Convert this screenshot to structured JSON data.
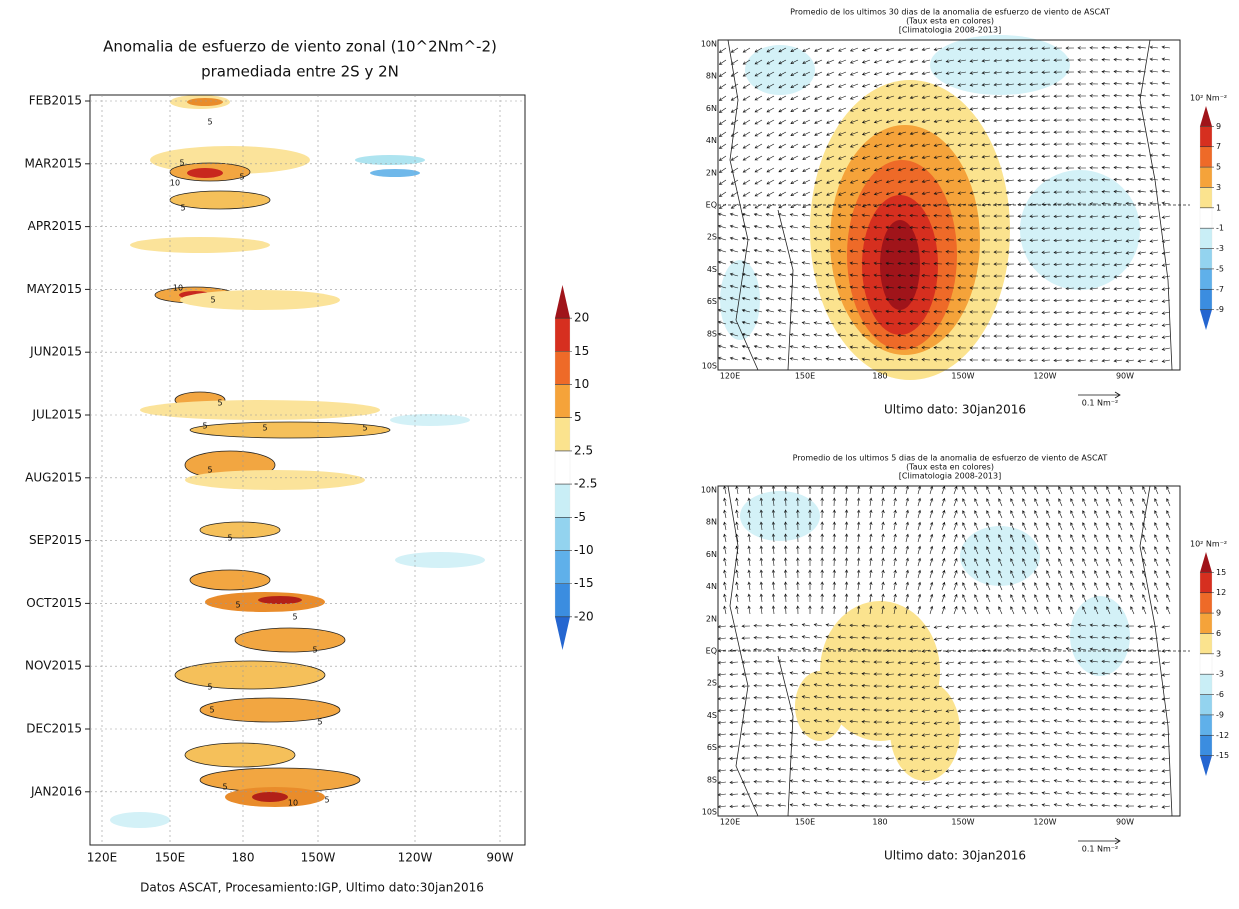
{
  "left_panel": {
    "title": [
      "Anomalia de esfuerzo de viento zonal (10^2Nm^-2)",
      "pramediada entre 2S y 2N"
    ],
    "y_labels": [
      "FEB2015",
      "MAR2015",
      "APR2015",
      "MAY2015",
      "JUN2015",
      "JUL2015",
      "AUG2015",
      "SEP2015",
      "OCT2015",
      "NOV2015",
      "DEC2015",
      "JAN2016"
    ],
    "x_labels": [
      "120E",
      "150E",
      "180",
      "150W",
      "120W",
      "90W"
    ],
    "colorbar_labels": [
      20,
      15,
      10,
      5,
      2.5,
      -2.5,
      -5,
      -10,
      -15,
      -20
    ],
    "contour_labels": [
      "5",
      "5",
      "10",
      "5",
      "5",
      "10",
      "5",
      "5",
      "5",
      "5",
      "5",
      "5",
      "5",
      "5",
      "5",
      "5",
      "5",
      "5",
      "5",
      "5",
      "10",
      "5"
    ],
    "footer": "Datos ASCAT, Procesamiento:IGP, Ultimo dato:30jan2016"
  },
  "top_right": {
    "title": [
      "Promedio de los ultimos 30 dias de la anomalia de esfuerzo de viento de ASCAT",
      "(Taux esta en colores)",
      "[Climatologia 2008-2013]"
    ],
    "y_labels": [
      "10N",
      "8N",
      "6N",
      "4N",
      "2N",
      "EQ",
      "2S",
      "4S",
      "6S",
      "8S",
      "10S"
    ],
    "x_labels": [
      "120E",
      "150E",
      "180",
      "150W",
      "120W",
      "90W"
    ],
    "colorbar_unit": "10² Nm⁻²",
    "colorbar_labels": [
      9,
      7,
      5,
      3,
      1,
      -1,
      -3,
      -5,
      -7,
      -9
    ],
    "reference_vector": "0.1 Nm⁻²",
    "footer": "Ultimo dato: 30jan2016"
  },
  "bottom_right": {
    "title": [
      "Promedio de los ultimos 5 dias de la anomalia de esfuerzo de viento de ASCAT",
      "(Taux esta en colores)",
      "[Climatologia 2008-2013]"
    ],
    "y_labels": [
      "10N",
      "8N",
      "6N",
      "4N",
      "2N",
      "EQ",
      "2S",
      "4S",
      "6S",
      "8S",
      "10S"
    ],
    "x_labels": [
      "120E",
      "150E",
      "180",
      "150W",
      "120W",
      "90W"
    ],
    "colorbar_unit": "10² Nm⁻²",
    "colorbar_labels": [
      15,
      12,
      9,
      6,
      3,
      -3,
      -6,
      -9,
      -12,
      -15
    ],
    "reference_vector": "0.1 Nm⁻²",
    "footer": "Ultimo dato: 30jan2016"
  }
}
